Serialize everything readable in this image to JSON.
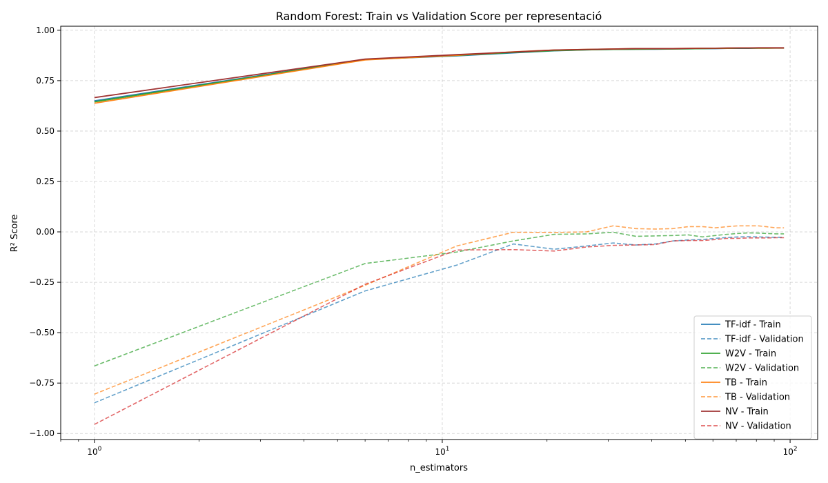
{
  "chart_data": {
    "type": "line",
    "title": "Random Forest: Train vs Validation Score per representació",
    "xlabel": "n_estimators",
    "ylabel": "R² Score",
    "xscale": "log",
    "xlim": [
      0.8,
      120
    ],
    "ylim": [
      -1.03,
      1.02
    ],
    "xticks": [
      {
        "value": 1,
        "base": "10",
        "exp": "0"
      },
      {
        "value": 10,
        "base": "10",
        "exp": "1"
      },
      {
        "value": 100,
        "base": "10",
        "exp": "2"
      }
    ],
    "yticks": [
      {
        "value": 1.0,
        "label": "1.00"
      },
      {
        "value": 0.75,
        "label": "0.75"
      },
      {
        "value": 0.5,
        "label": "0.50"
      },
      {
        "value": 0.25,
        "label": "0.25"
      },
      {
        "value": 0.0,
        "label": "0.00"
      },
      {
        "value": -0.25,
        "label": "−0.25"
      },
      {
        "value": -0.5,
        "label": "−0.50"
      },
      {
        "value": -0.75,
        "label": "−0.75"
      },
      {
        "value": -1.0,
        "label": "−1.00"
      }
    ],
    "grid": true,
    "legend_position": "bottom-right",
    "x": [
      1,
      6,
      11,
      16,
      21,
      26,
      31,
      36,
      41,
      46,
      51,
      56,
      61,
      66,
      71,
      76,
      81,
      86,
      91,
      96
    ],
    "series": [
      {
        "name": "TF-idf - Train",
        "color": "#1f77b4",
        "style": "solid",
        "values": [
          0.65,
          0.855,
          0.873,
          0.888,
          0.898,
          0.903,
          0.905,
          0.906,
          0.906,
          0.907,
          0.908,
          0.909,
          0.909,
          0.91,
          0.91,
          0.91,
          0.911,
          0.911,
          0.911,
          0.911
        ]
      },
      {
        "name": "TF-idf - Validation",
        "color": "#1f77b4",
        "style": "dashed",
        "values": [
          -0.848,
          -0.293,
          -0.165,
          -0.06,
          -0.086,
          -0.07,
          -0.055,
          -0.065,
          -0.06,
          -0.045,
          -0.04,
          -0.038,
          -0.032,
          -0.028,
          -0.025,
          -0.024,
          -0.025,
          -0.026,
          -0.027,
          -0.027
        ]
      },
      {
        "name": "W2V - Train",
        "color": "#2ca02c",
        "style": "solid",
        "values": [
          0.645,
          0.855,
          0.875,
          0.89,
          0.899,
          0.903,
          0.905,
          0.906,
          0.907,
          0.907,
          0.908,
          0.909,
          0.91,
          0.91,
          0.911,
          0.911,
          0.911,
          0.911,
          0.912,
          0.912
        ]
      },
      {
        "name": "W2V - Validation",
        "color": "#2ca02c",
        "style": "dashed",
        "values": [
          -0.665,
          -0.157,
          -0.1,
          -0.045,
          -0.012,
          -0.01,
          -0.002,
          -0.022,
          -0.02,
          -0.018,
          -0.015,
          -0.025,
          -0.018,
          -0.012,
          -0.008,
          -0.005,
          -0.006,
          -0.008,
          -0.01,
          -0.01
        ]
      },
      {
        "name": "TB - Train",
        "color": "#ff7f0e",
        "style": "solid",
        "values": [
          0.638,
          0.853,
          0.876,
          0.893,
          0.902,
          0.905,
          0.907,
          0.909,
          0.909,
          0.909,
          0.91,
          0.911,
          0.911,
          0.911,
          0.912,
          0.912,
          0.912,
          0.912,
          0.912,
          0.912
        ]
      },
      {
        "name": "TB - Validation",
        "color": "#ff7f0e",
        "style": "dashed",
        "values": [
          -0.805,
          -0.265,
          -0.07,
          -0.002,
          -0.003,
          0.0,
          0.03,
          0.016,
          0.014,
          0.016,
          0.026,
          0.026,
          0.02,
          0.026,
          0.03,
          0.03,
          0.03,
          0.025,
          0.02,
          0.02
        ]
      },
      {
        "name": "NV - Train",
        "color": "#9c2a2a",
        "style": "solid",
        "values": [
          0.666,
          0.857,
          0.879,
          0.892,
          0.902,
          0.905,
          0.907,
          0.909,
          0.909,
          0.909,
          0.91,
          0.911,
          0.911,
          0.912,
          0.912,
          0.912,
          0.913,
          0.913,
          0.913,
          0.913
        ]
      },
      {
        "name": "NV - Validation",
        "color": "#d62728",
        "style": "dashed",
        "values": [
          -0.955,
          -0.26,
          -0.09,
          -0.088,
          -0.095,
          -0.075,
          -0.067,
          -0.065,
          -0.063,
          -0.045,
          -0.043,
          -0.043,
          -0.038,
          -0.032,
          -0.032,
          -0.03,
          -0.03,
          -0.03,
          -0.029,
          -0.029
        ]
      }
    ]
  }
}
